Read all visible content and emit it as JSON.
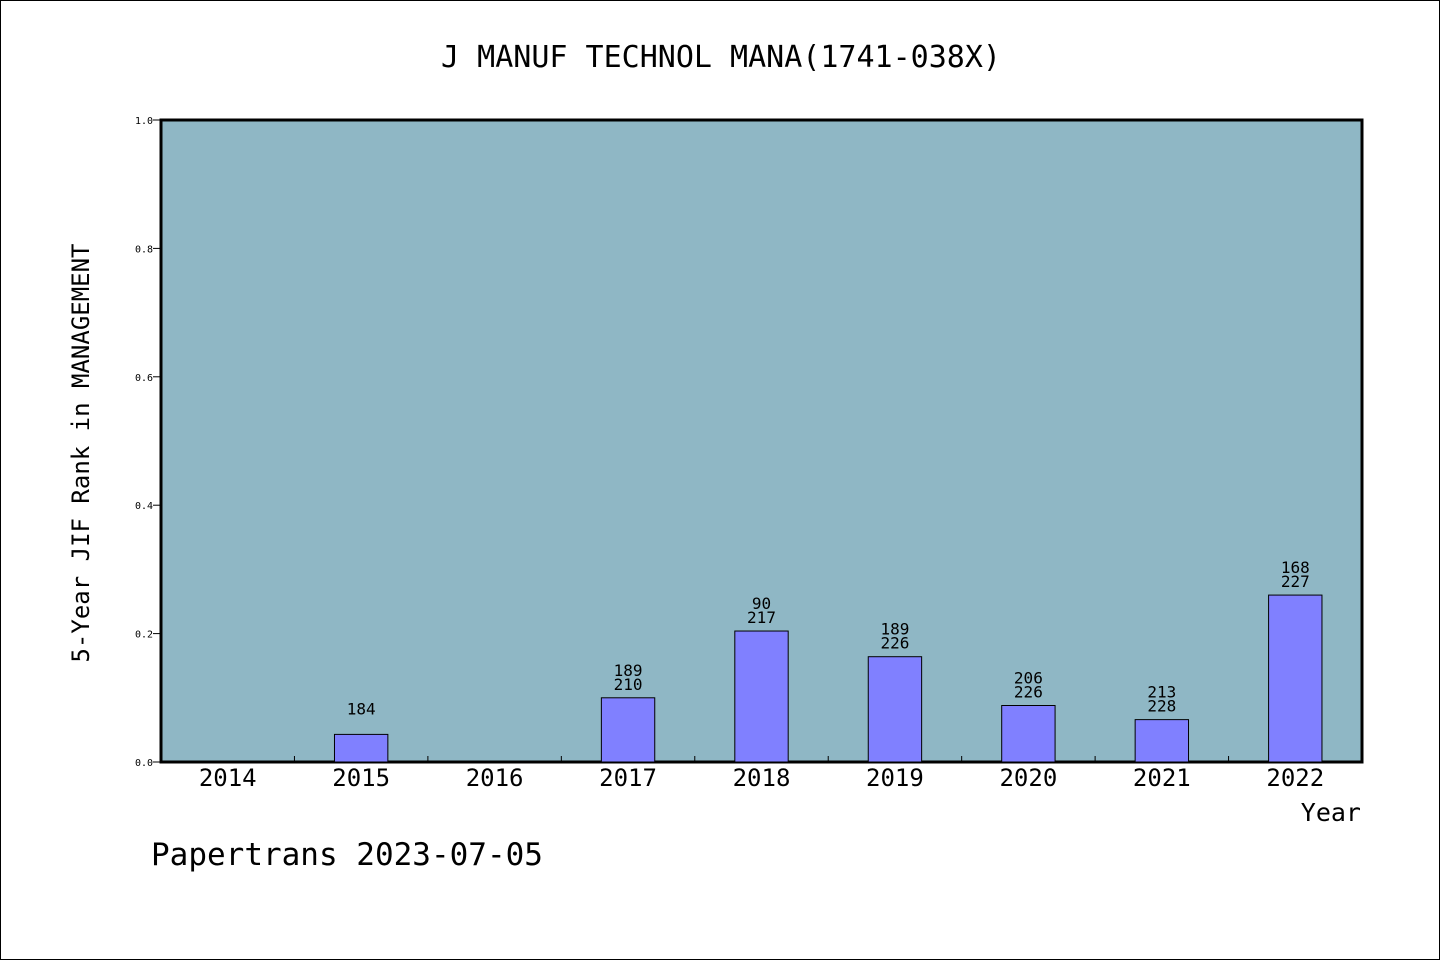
{
  "chart_data": {
    "type": "bar",
    "title": "J MANUF TECHNOL MANA(1741-038X)",
    "xlabel": "Year",
    "ylabel": "5-Year JIF Rank in MANAGEMENT",
    "ylim": [
      0,
      1.0
    ],
    "yticks": [
      "0.0",
      "0.2",
      "0.4",
      "0.6",
      "0.8",
      "1.0"
    ],
    "categories": [
      "2014",
      "2015",
      "2016",
      "2017",
      "2018",
      "2019",
      "2020",
      "2021",
      "2022"
    ],
    "values": [
      null,
      0.043,
      null,
      0.1,
      0.204,
      0.164,
      0.088,
      0.066,
      0.26
    ],
    "labels": [
      [],
      [
        "184"
      ],
      [],
      [
        "189",
        "210"
      ],
      [
        "90",
        "217"
      ],
      [
        "189",
        "226"
      ],
      [
        "206",
        "226"
      ],
      [
        "213",
        "228"
      ],
      [
        "168",
        "227"
      ]
    ],
    "plot_background": "#8fb7c5",
    "bar_color": "#8080ff",
    "grid": false
  },
  "footer": "Papertrans 2023-07-05"
}
